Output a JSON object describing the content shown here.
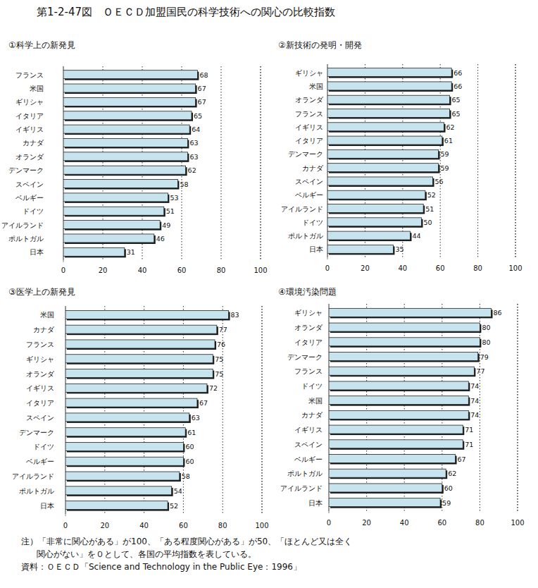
{
  "title": "第1-2-47図　ＯＥＣＤ加盟国民の科学技術への関心の比較指数",
  "notes": [
    "注）「非常に関心がある」が100、「ある程度関心がある」が50、「ほとんど又は全く",
    "関心がない」を０として、各国の平均指数を表している。",
    "資料：ＯＥＣＤ「Science and Technology in the Public Eye：1996」"
  ],
  "chart_data": [
    {
      "type": "bar",
      "orientation": "horizontal",
      "title": "①科学上の新発見",
      "categories": [
        "フランス",
        "米国",
        "ギリシャ",
        "イタリア",
        "イギリス",
        "カナダ",
        "オランダ",
        "デンマーク",
        "スペイン",
        "ベルギー",
        "ドイツ",
        "アイルランド",
        "ポルトガル",
        "日本"
      ],
      "values": [
        68,
        67,
        67,
        65,
        64,
        63,
        63,
        62,
        58,
        53,
        51,
        49,
        46,
        31
      ],
      "color": "#c6e3ee",
      "xlim": [
        0,
        100
      ],
      "xticks": [
        0,
        20,
        40,
        60,
        80,
        100
      ],
      "grid": true,
      "data_labels": true
    },
    {
      "type": "bar",
      "orientation": "horizontal",
      "title": "②新技術の発明・開発",
      "categories": [
        "ギリシャ",
        "米国",
        "オランダ",
        "フランス",
        "イギリス",
        "イタリア",
        "デンマーク",
        "カナダ",
        "スペイン",
        "ベルギー",
        "アイルランド",
        "ドイツ",
        "ポルトガル",
        "日本"
      ],
      "values": [
        66,
        66,
        65,
        65,
        62,
        61,
        59,
        59,
        56,
        52,
        51,
        50,
        44,
        35
      ],
      "color": "#c6e3ee",
      "xlim": [
        0,
        100
      ],
      "xticks": [
        0,
        20,
        40,
        60,
        80,
        100
      ],
      "grid": true,
      "data_labels": true
    },
    {
      "type": "bar",
      "orientation": "horizontal",
      "title": "③医学上の新発見",
      "categories": [
        "米国",
        "カナダ",
        "フランス",
        "ギリシャ",
        "オランダ",
        "イギリス",
        "イタリア",
        "スペイン",
        "デンマーク",
        "ドイツ",
        "ベルギー",
        "アイルランド",
        "ポルトガル",
        "日本"
      ],
      "values": [
        83,
        77,
        76,
        75,
        75,
        72,
        67,
        63,
        61,
        60,
        60,
        58,
        54,
        52
      ],
      "color": "#c6e3ee",
      "xlim": [
        0,
        100
      ],
      "xticks": [
        0,
        20,
        40,
        60,
        80,
        100
      ],
      "grid": true,
      "data_labels": true
    },
    {
      "type": "bar",
      "orientation": "horizontal",
      "title": "④環境汚染問題",
      "categories": [
        "ギリシャ",
        "オランダ",
        "イタリア",
        "デンマーク",
        "フランス",
        "ドイツ",
        "米国",
        "カナダ",
        "イギリス",
        "スペイン",
        "ベルギー",
        "ポルトガル",
        "アイルランド",
        "日本"
      ],
      "values": [
        86,
        80,
        80,
        79,
        77,
        74,
        74,
        74,
        71,
        71,
        67,
        62,
        60,
        59
      ],
      "color": "#c6e3ee",
      "xlim": [
        0,
        100
      ],
      "xticks": [
        0,
        20,
        40,
        60,
        80,
        100
      ],
      "grid": true,
      "data_labels": true
    }
  ]
}
